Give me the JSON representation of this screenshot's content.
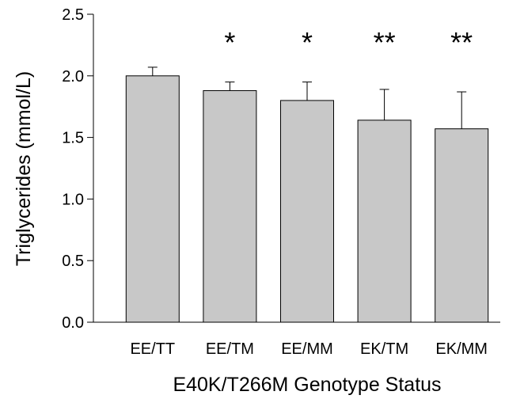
{
  "chart_data": {
    "type": "bar",
    "title": "",
    "xlabel": "E40K/T266M Genotype Status",
    "ylabel": "Triglycerides (mmol/L)",
    "ylim": [
      0,
      2.5
    ],
    "yticks": [
      "0.0",
      "0.5",
      "1.0",
      "1.5",
      "2.0",
      "2.5"
    ],
    "categories": [
      "EE/TT",
      "EE/TM",
      "EE/MM",
      "EK/TM",
      "EK/MM"
    ],
    "values": [
      2.0,
      1.88,
      1.8,
      1.64,
      1.57
    ],
    "error_upper": [
      0.07,
      0.07,
      0.15,
      0.25,
      0.3
    ],
    "significance": [
      "",
      "*",
      "*",
      "**",
      "**"
    ],
    "bar_color": "#c8c8c8",
    "grid": false
  }
}
